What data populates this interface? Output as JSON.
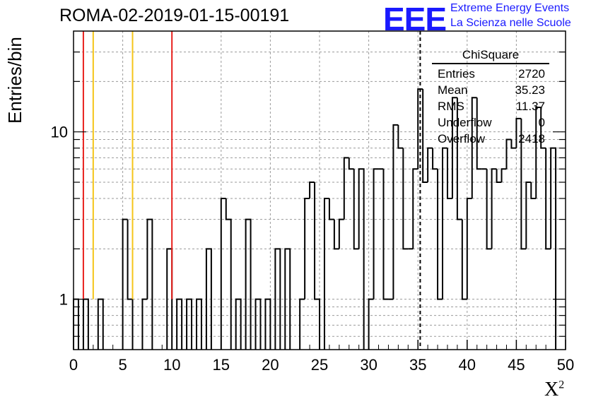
{
  "title": "ROMA-02-2019-01-15-00191",
  "logo": {
    "text": "EEE",
    "line1": "Extreme Energy Events",
    "line2": "La Scienza nelle Scuole",
    "color": "#1a1aff"
  },
  "stats": {
    "name": "ChiSquare",
    "rows": [
      {
        "label": "Entries",
        "value": "2720"
      },
      {
        "label": "Mean",
        "value": "35.23"
      },
      {
        "label": "RMS",
        "value": "11.37"
      },
      {
        "label": "Underflow",
        "value": "0"
      },
      {
        "label": "Overflow",
        "value": "2418"
      }
    ]
  },
  "chart_data": {
    "type": "bar",
    "title": "ROMA-02-2019-01-15-00191",
    "xlabel": "X",
    "xlabel_sup": "2",
    "ylabel": "Entries/bin",
    "xlim": [
      0,
      50
    ],
    "ylim": [
      0.5,
      40
    ],
    "log_y": true,
    "grid": true,
    "bin_width": 0.5,
    "xticks": [
      0,
      5,
      10,
      15,
      20,
      25,
      30,
      35,
      40,
      45,
      50
    ],
    "yticks": [
      1,
      10
    ],
    "bins": [
      [
        0.0,
        1
      ],
      [
        1.0,
        1
      ],
      [
        2.5,
        1
      ],
      [
        5.0,
        3
      ],
      [
        5.5,
        1
      ],
      [
        7.0,
        1
      ],
      [
        7.5,
        3
      ],
      [
        9.5,
        2
      ],
      [
        10.5,
        1
      ],
      [
        11.5,
        1
      ],
      [
        12.5,
        1
      ],
      [
        13.5,
        2
      ],
      [
        15.0,
        4
      ],
      [
        15.5,
        3
      ],
      [
        16.5,
        1
      ],
      [
        17.5,
        3
      ],
      [
        18.5,
        1
      ],
      [
        19.5,
        1
      ],
      [
        20.5,
        2
      ],
      [
        21.5,
        2
      ],
      [
        23.0,
        1
      ],
      [
        23.5,
        4
      ],
      [
        24.0,
        5
      ],
      [
        24.5,
        1
      ],
      [
        25.5,
        4
      ],
      [
        26.0,
        3
      ],
      [
        26.5,
        2
      ],
      [
        27.0,
        3
      ],
      [
        27.5,
        7
      ],
      [
        28.0,
        6
      ],
      [
        28.5,
        2
      ],
      [
        29.0,
        6
      ],
      [
        30.0,
        1
      ],
      [
        30.5,
        6
      ],
      [
        31.0,
        6
      ],
      [
        31.5,
        1
      ],
      [
        32.0,
        1
      ],
      [
        32.5,
        11
      ],
      [
        33.0,
        8
      ],
      [
        33.5,
        2
      ],
      [
        34.0,
        2
      ],
      [
        34.5,
        6
      ],
      [
        35.0,
        18
      ],
      [
        35.5,
        5
      ],
      [
        36.0,
        8
      ],
      [
        36.5,
        6
      ],
      [
        37.0,
        1
      ],
      [
        37.5,
        8
      ],
      [
        38.0,
        4
      ],
      [
        38.5,
        16
      ],
      [
        39.0,
        3
      ],
      [
        39.5,
        1
      ],
      [
        40.0,
        4
      ],
      [
        40.5,
        16
      ],
      [
        41.0,
        6
      ],
      [
        41.5,
        6
      ],
      [
        42.0,
        2
      ],
      [
        42.5,
        6
      ],
      [
        43.0,
        5
      ],
      [
        43.5,
        6
      ],
      [
        44.0,
        9
      ],
      [
        44.5,
        8
      ],
      [
        45.0,
        12
      ],
      [
        45.5,
        2
      ],
      [
        46.0,
        5
      ],
      [
        46.5,
        4
      ],
      [
        47.0,
        14
      ],
      [
        47.5,
        8
      ],
      [
        48.0,
        2
      ],
      [
        48.5,
        8
      ]
    ],
    "vlines": [
      {
        "x": 1,
        "color": "#e8201c",
        "style": "solid"
      },
      {
        "x": 2,
        "color": "#f5c518",
        "style": "solid"
      },
      {
        "x": 6,
        "color": "#f5c518",
        "style": "solid"
      },
      {
        "x": 10,
        "color": "#e8201c",
        "style": "solid"
      },
      {
        "x": 35.23,
        "color": "#000000",
        "style": "dashed"
      }
    ]
  }
}
